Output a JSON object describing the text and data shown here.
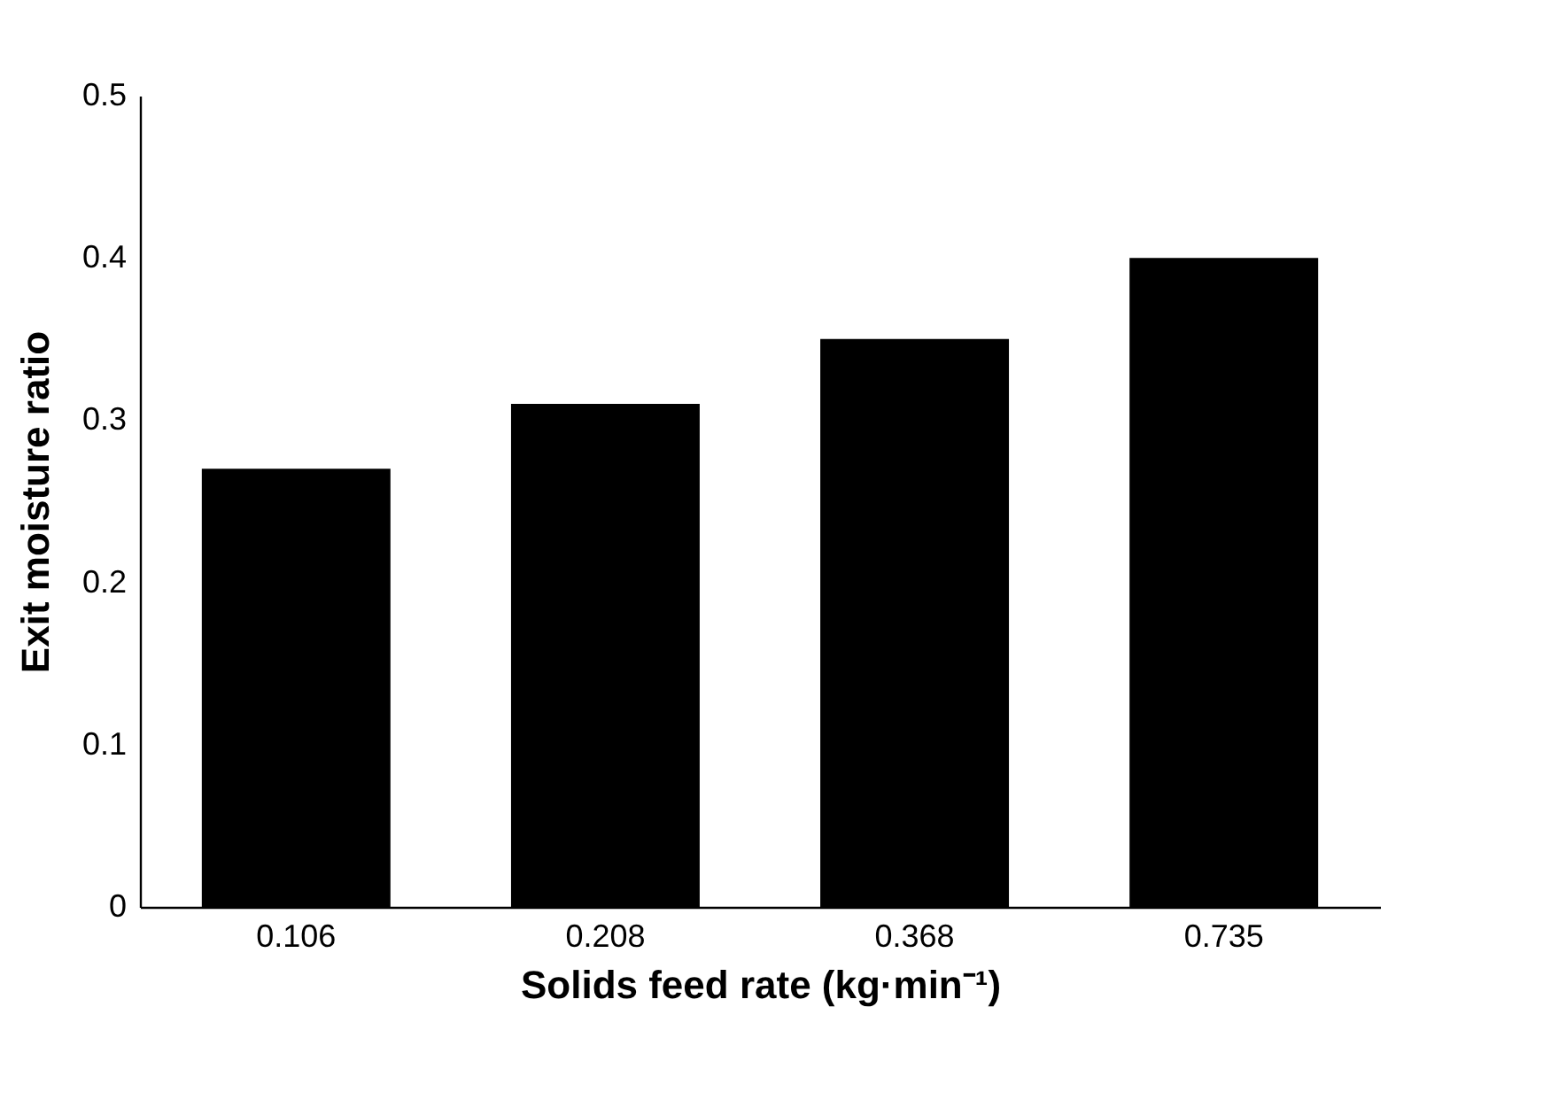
{
  "chart_data": {
    "type": "bar",
    "xlabel": "Solids feed rate (kg·min⁻¹)",
    "ylabel": "Exit moisture ratio",
    "categories": [
      "0.106",
      "0.208",
      "0.368",
      "0.735"
    ],
    "values": [
      0.27,
      0.31,
      0.35,
      0.4
    ],
    "color": "#000000",
    "ylim": [
      0,
      0.5
    ],
    "yticks": [
      0,
      0.1,
      0.2,
      0.3,
      0.4,
      0.5
    ],
    "grid": false
  }
}
